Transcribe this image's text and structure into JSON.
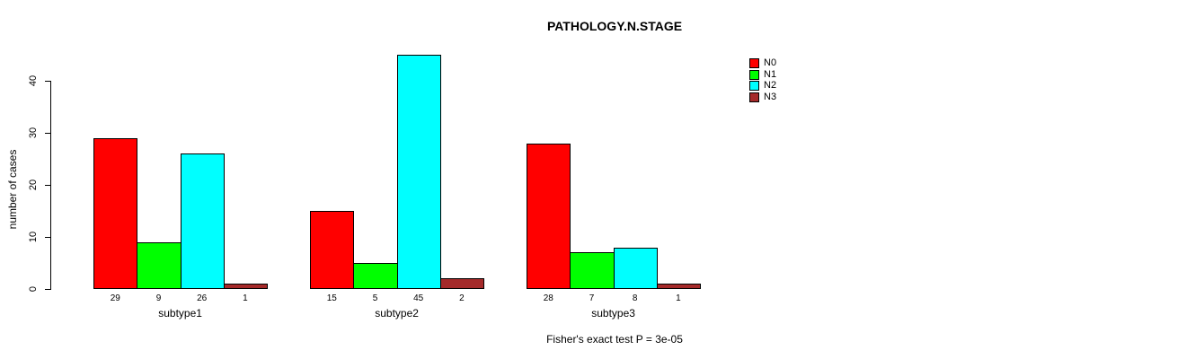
{
  "chart_data": {
    "type": "bar",
    "title": "PATHOLOGY.N.STAGE",
    "ylabel": "number of cases",
    "xlabel": "",
    "categories": [
      "subtype1",
      "subtype2",
      "subtype3"
    ],
    "series": [
      {
        "name": "N0",
        "color": "#ff0000",
        "values": [
          29,
          15,
          28
        ]
      },
      {
        "name": "N1",
        "color": "#00ff00",
        "values": [
          9,
          5,
          7
        ]
      },
      {
        "name": "N2",
        "color": "#00ffff",
        "values": [
          26,
          45,
          8
        ]
      },
      {
        "name": "N3",
        "color": "#a52a2a",
        "values": [
          1,
          2,
          1
        ]
      }
    ],
    "yticks": [
      0,
      10,
      20,
      30,
      40
    ],
    "ylim": [
      0,
      45
    ],
    "bar_value_labels_shown": true,
    "grid": false,
    "legend_position": "top-right",
    "annotation": "Fisher's exact test P = 3e-05"
  },
  "colors": {
    "background": "#ffffff",
    "axis": "#000000",
    "bar_border": "#000000",
    "text": "#000000"
  }
}
